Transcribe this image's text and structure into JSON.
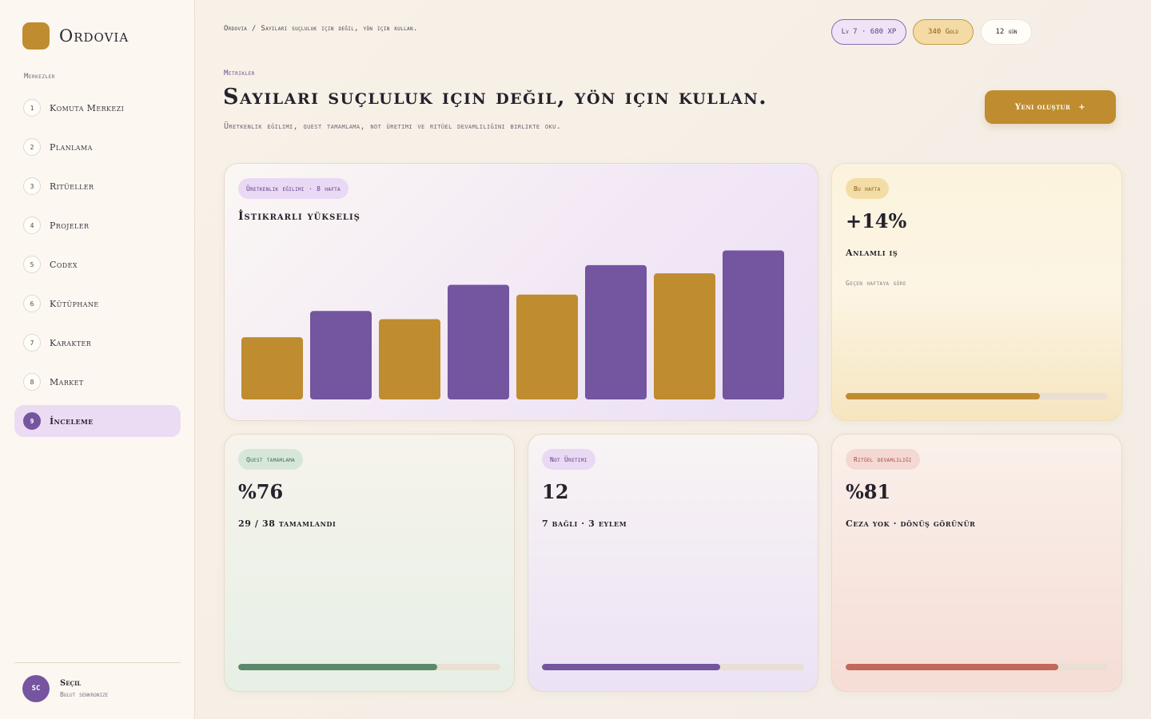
{
  "app": {
    "name": "Ordovia"
  },
  "sidebar": {
    "section_title": "Merkezler",
    "items": [
      {
        "num": "1",
        "label": "Komuta Merkezi",
        "active": false
      },
      {
        "num": "2",
        "label": "Planlama",
        "active": false
      },
      {
        "num": "3",
        "label": "Ritüeller",
        "active": false
      },
      {
        "num": "4",
        "label": "Projeler",
        "active": false
      },
      {
        "num": "5",
        "label": "Codex",
        "active": false
      },
      {
        "num": "6",
        "label": "Kütüphane",
        "active": false
      },
      {
        "num": "7",
        "label": "Karakter",
        "active": false
      },
      {
        "num": "8",
        "label": "Market",
        "active": false
      },
      {
        "num": "9",
        "label": "İnceleme",
        "active": true
      }
    ],
    "user": {
      "initials": "SC",
      "name": "Seçil",
      "status": "Bulut senkronize"
    }
  },
  "header": {
    "breadcrumb": "Ordovia / Sayıları suçluluk için değil, yön için kullan.",
    "chips": {
      "xp": "Lv 7 · 680 XP",
      "gold": "340 Gold",
      "days": "12 gün"
    }
  },
  "page": {
    "eyebrow": "Metrikler",
    "title": "Sayıları suçluluk için değil, yön için kullan.",
    "subtitle": "Üretkenlik eğilimi, quest tamamlama, not üretimi ve ritüel devamlılığını birlikte oku.",
    "cta_label": "Yeni oluştur",
    "cta_icon": "+"
  },
  "trend_card": {
    "tag": "Üretkenlik eğilimi · 8 hafta",
    "heading": "İstikrarlı yükseliş"
  },
  "chart_data": {
    "type": "bar",
    "values": [
      38,
      54,
      49,
      70,
      64,
      82,
      77,
      91
    ],
    "ylim": [
      0,
      100
    ],
    "colors": [
      "#bf8c2f",
      "#7355a0",
      "#bf8c2f",
      "#7355a0",
      "#bf8c2f",
      "#7355a0",
      "#bf8c2f",
      "#7355a0"
    ]
  },
  "week_card": {
    "tag": "Bu hafta",
    "value": "+14%",
    "label": "Anlamlı iş",
    "note": "Geçen haftaya göre",
    "progress": 0.74,
    "color": "#bf8c2f"
  },
  "quest_card": {
    "tag": "Quest tamamlama",
    "value": "%76",
    "label": "29 / 38 tamamlandı",
    "progress": 0.76,
    "color": "#5b8a6b"
  },
  "note_card": {
    "tag": "Not Üretimi",
    "value": "12",
    "label": "7 bağlı · 3 eylem",
    "progress": 0.68,
    "color": "#7355a0"
  },
  "ritual_card": {
    "tag": "Ritüel devamlılığı",
    "value": "%81",
    "label": "Ceza yok · dönüş görünür",
    "progress": 0.81,
    "color": "#c0685a"
  }
}
